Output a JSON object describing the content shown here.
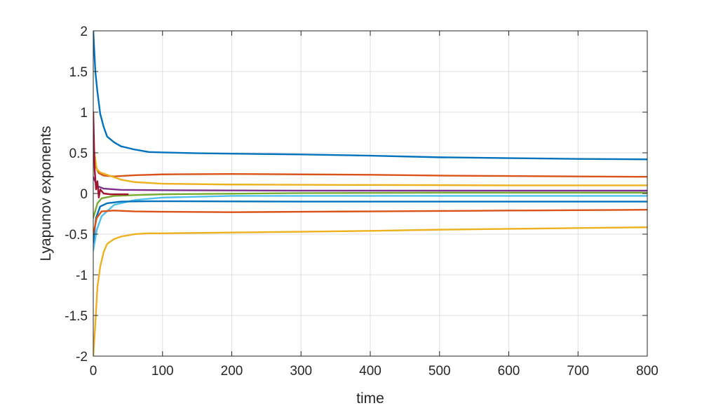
{
  "chart_data": {
    "type": "line",
    "xlabel": "time",
    "ylabel": "Lyapunov exponents",
    "xlim": [
      0,
      800
    ],
    "ylim": [
      -2,
      2
    ],
    "xticks": [
      0,
      100,
      200,
      300,
      400,
      500,
      600,
      700,
      800
    ],
    "yticks": [
      -2,
      -1.5,
      -1,
      -0.5,
      0,
      0.5,
      1,
      1.5,
      2
    ],
    "ytick_labels": [
      "-2",
      "-1.5",
      "-1",
      "-0.5",
      "0",
      "0.5",
      "1",
      "1.5",
      "2"
    ],
    "grid": true,
    "series": [
      {
        "color": "#0072BD",
        "points": [
          [
            0,
            2.0
          ],
          [
            3,
            1.5
          ],
          [
            6,
            1.25
          ],
          [
            10,
            0.98
          ],
          [
            15,
            0.82
          ],
          [
            20,
            0.7
          ],
          [
            30,
            0.63
          ],
          [
            40,
            0.58
          ],
          [
            60,
            0.54
          ],
          [
            80,
            0.51
          ],
          [
            100,
            0.505
          ],
          [
            150,
            0.495
          ],
          [
            200,
            0.49
          ],
          [
            300,
            0.48
          ],
          [
            400,
            0.465
          ],
          [
            500,
            0.445
          ],
          [
            600,
            0.435
          ],
          [
            700,
            0.425
          ],
          [
            800,
            0.42
          ]
        ]
      },
      {
        "color": "#D95319",
        "points": [
          [
            0,
            0.5
          ],
          [
            4,
            0.32
          ],
          [
            8,
            0.25
          ],
          [
            15,
            0.22
          ],
          [
            30,
            0.21
          ],
          [
            60,
            0.225
          ],
          [
            100,
            0.235
          ],
          [
            200,
            0.24
          ],
          [
            300,
            0.235
          ],
          [
            400,
            0.23
          ],
          [
            500,
            0.22
          ],
          [
            600,
            0.215
          ],
          [
            700,
            0.21
          ],
          [
            800,
            0.205
          ]
        ]
      },
      {
        "color": "#EDB120",
        "points": [
          [
            0,
            0.6
          ],
          [
            5,
            0.3
          ],
          [
            10,
            0.26
          ],
          [
            20,
            0.23
          ],
          [
            40,
            0.17
          ],
          [
            60,
            0.14
          ],
          [
            100,
            0.12
          ],
          [
            200,
            0.11
          ],
          [
            400,
            0.105
          ],
          [
            600,
            0.1
          ],
          [
            800,
            0.1
          ]
        ]
      },
      {
        "color": "#7E2F8E",
        "points": [
          [
            0,
            0.2
          ],
          [
            6,
            0.09
          ],
          [
            15,
            0.06
          ],
          [
            40,
            0.045
          ],
          [
            100,
            0.04
          ],
          [
            300,
            0.035
          ],
          [
            500,
            0.035
          ],
          [
            800,
            0.035
          ]
        ]
      },
      {
        "color": "#77AC30",
        "points": [
          [
            0,
            -0.3
          ],
          [
            6,
            -0.12
          ],
          [
            12,
            -0.06
          ],
          [
            30,
            -0.03
          ],
          [
            60,
            -0.02
          ],
          [
            100,
            -0.01
          ],
          [
            300,
            0.005
          ],
          [
            500,
            0.01
          ],
          [
            800,
            0.01
          ]
        ]
      },
      {
        "color": "#4DBEEE",
        "points": [
          [
            0,
            -0.7
          ],
          [
            5,
            -0.45
          ],
          [
            12,
            -0.28
          ],
          [
            30,
            -0.14
          ],
          [
            60,
            -0.08
          ],
          [
            100,
            -0.05
          ],
          [
            200,
            -0.03
          ],
          [
            400,
            -0.03
          ],
          [
            600,
            -0.03
          ],
          [
            800,
            -0.03
          ]
        ]
      },
      {
        "color": "#0072BD",
        "points": [
          [
            0,
            -0.6
          ],
          [
            4,
            -0.3
          ],
          [
            10,
            -0.16
          ],
          [
            20,
            -0.12
          ],
          [
            40,
            -0.1
          ],
          [
            80,
            -0.095
          ],
          [
            100,
            -0.095
          ],
          [
            300,
            -0.1
          ],
          [
            500,
            -0.1
          ],
          [
            800,
            -0.1
          ]
        ]
      },
      {
        "color": "#D95319",
        "points": [
          [
            0,
            -0.5
          ],
          [
            5,
            -0.3
          ],
          [
            12,
            -0.22
          ],
          [
            30,
            -0.21
          ],
          [
            60,
            -0.22
          ],
          [
            100,
            -0.225
          ],
          [
            200,
            -0.23
          ],
          [
            300,
            -0.225
          ],
          [
            400,
            -0.22
          ],
          [
            500,
            -0.215
          ],
          [
            600,
            -0.21
          ],
          [
            700,
            -0.205
          ],
          [
            800,
            -0.2
          ]
        ]
      },
      {
        "color": "#EDB120",
        "points": [
          [
            0,
            -2.0
          ],
          [
            3,
            -1.6
          ],
          [
            6,
            -1.15
          ],
          [
            10,
            -0.9
          ],
          [
            15,
            -0.72
          ],
          [
            20,
            -0.62
          ],
          [
            30,
            -0.56
          ],
          [
            40,
            -0.53
          ],
          [
            60,
            -0.5
          ],
          [
            80,
            -0.49
          ],
          [
            100,
            -0.49
          ],
          [
            200,
            -0.48
          ],
          [
            300,
            -0.47
          ],
          [
            400,
            -0.46
          ],
          [
            500,
            -0.445
          ],
          [
            600,
            -0.435
          ],
          [
            700,
            -0.425
          ],
          [
            800,
            -0.415
          ]
        ]
      },
      {
        "color": "#A2142F",
        "points": [
          [
            0,
            1.0
          ],
          [
            2,
            0.3
          ],
          [
            4,
            0.05
          ],
          [
            6,
            0.15
          ],
          [
            8,
            -0.05
          ],
          [
            10,
            0.05
          ],
          [
            15,
            0.0
          ],
          [
            25,
            -0.01
          ],
          [
            50,
            -0.01
          ]
        ]
      }
    ]
  }
}
